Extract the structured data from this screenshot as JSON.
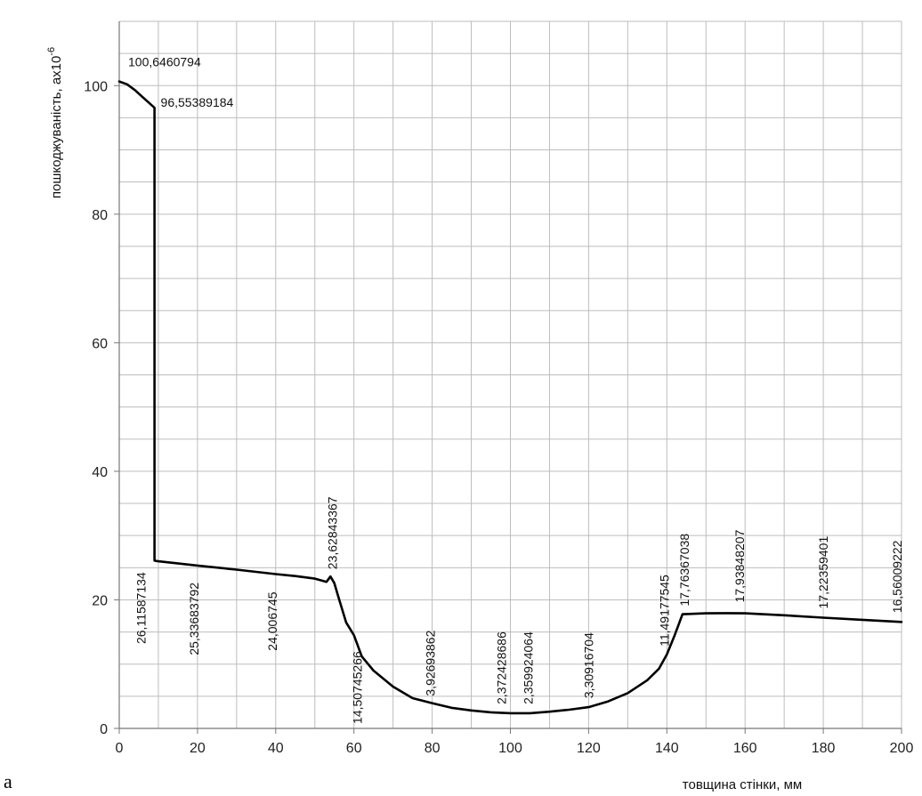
{
  "panel_letter": "a",
  "chart_data": {
    "type": "line",
    "title": "",
    "xlabel": "товщина стінки, мм",
    "ylabel": "пошкоджуваність, ax10",
    "ylabel_exponent": "-6",
    "xlim": [
      0,
      200
    ],
    "ylim": [
      0,
      110
    ],
    "x_ticks": [
      "0",
      "20",
      "40",
      "60",
      "80",
      "100",
      "120",
      "140",
      "160",
      "180",
      "200"
    ],
    "y_ticks": [
      "0",
      "20",
      "40",
      "60",
      "80",
      "100"
    ],
    "grid": true,
    "x_minor_grid_step": 10,
    "y_minor_grid_step": 5,
    "line_color": "#000000",
    "grid_color": "#bdbdbd",
    "series": [
      {
        "x": [
          0,
          2,
          4,
          6,
          8,
          9,
          9,
          10,
          20,
          30,
          40,
          45,
          50,
          53,
          54,
          55,
          56,
          57,
          58,
          60,
          62,
          65,
          70,
          75,
          80,
          85,
          90,
          95,
          100,
          105,
          110,
          115,
          120,
          125,
          130,
          135,
          138,
          140,
          142,
          144,
          145,
          150,
          155,
          160,
          170,
          180,
          190,
          200
        ],
        "y": [
          100.6460794,
          100.2,
          99.3,
          98.2,
          97.1,
          96.55389184,
          26.11587134,
          26.0,
          25.33683792,
          24.7,
          24.006745,
          23.7,
          23.3,
          22.8,
          23.62843367,
          22.6,
          20.5,
          18.5,
          16.5,
          14.50745266,
          11.2,
          9.0,
          6.5,
          4.7,
          3.92693862,
          3.2,
          2.8,
          2.5,
          2.372428686,
          2.359924064,
          2.6,
          2.9,
          3.30916704,
          4.2,
          5.5,
          7.5,
          9.3,
          11.49177545,
          14.5,
          17.76367038,
          17.8,
          17.9,
          17.93848207,
          17.9,
          17.6,
          17.22359401,
          16.9,
          16.56009222
        ]
      }
    ],
    "annotations": [
      {
        "text": "100,6460794",
        "x": 0,
        "y": 100.6460794,
        "rotated": false
      },
      {
        "text": "96,55389184",
        "x": 9,
        "y": 96.55389184,
        "rotated": false
      },
      {
        "text": "26,11587134",
        "x": 9,
        "y": 26.11587134,
        "rotated": true
      },
      {
        "text": "25,33683792",
        "x": 20,
        "y": 25.33683792,
        "rotated": true
      },
      {
        "text": "24,006745",
        "x": 40,
        "y": 24.006745,
        "rotated": true
      },
      {
        "text": "23,62843367",
        "x": 54,
        "y": 23.62843367,
        "rotated": true
      },
      {
        "text": "14,50745266",
        "x": 60,
        "y": 14.50745266,
        "rotated": true
      },
      {
        "text": "3,92693862",
        "x": 80,
        "y": 3.92693862,
        "rotated": true
      },
      {
        "text": "2,372428686",
        "x": 100,
        "y": 2.372428686,
        "rotated": true
      },
      {
        "text": "2,359924064",
        "x": 105,
        "y": 2.359924064,
        "rotated": true
      },
      {
        "text": "3,30916704",
        "x": 120,
        "y": 3.30916704,
        "rotated": true
      },
      {
        "text": "11,49177545",
        "x": 140,
        "y": 11.49177545,
        "rotated": true
      },
      {
        "text": "17,76367038",
        "x": 144,
        "y": 17.76367038,
        "rotated": true
      },
      {
        "text": "17,93848207",
        "x": 160,
        "y": 17.93848207,
        "rotated": true
      },
      {
        "text": "17,22359401",
        "x": 180,
        "y": 17.22359401,
        "rotated": true
      },
      {
        "text": "16,56009222",
        "x": 200,
        "y": 16.56009222,
        "rotated": true
      }
    ]
  }
}
